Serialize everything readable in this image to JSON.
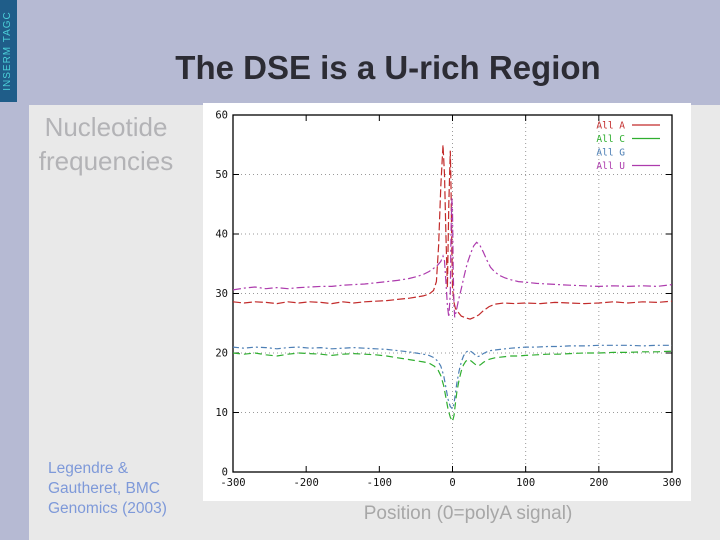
{
  "slide": {
    "sidebar_text": "INSERM TAGC",
    "title": "The DSE is a U-rich Region",
    "content_label": [
      "Nucleotide",
      "frequencies"
    ],
    "citation": [
      "Legendre &",
      "Gautheret, BMC",
      "Genomics (2003)"
    ],
    "xaxis_caption": "Position (0=polyA signal)"
  },
  "colors": {
    "background": "#b6bad3",
    "sidebar_bar": "#1f5d89",
    "sidebar_text": "#4ccfd9",
    "title_text": "#2c2c34",
    "content_box": "#e9e9e9",
    "muted_label": "#b3b3b6",
    "citation_text": "#7e99d9",
    "caption_text": "#a7a7a7",
    "grid": "#9a9a9a",
    "axis": "#000000"
  },
  "chart_data": {
    "type": "line",
    "title": "",
    "xlabel": "",
    "ylabel": "",
    "xlim": [
      -300,
      300
    ],
    "ylim": [
      0,
      60
    ],
    "xticks": [
      -300,
      -200,
      -100,
      0,
      100,
      200,
      300
    ],
    "yticks": [
      0,
      10,
      20,
      30,
      40,
      50,
      60
    ],
    "grid": {
      "h": [
        10,
        20,
        30,
        40,
        50
      ],
      "v": [
        0,
        100,
        200
      ]
    },
    "legend_position": "top-right-inside",
    "legend": [
      {
        "label": "All A",
        "color": "#c22b2b",
        "sample": true
      },
      {
        "label": "All C",
        "color": "#2fae2f",
        "sample": true
      },
      {
        "label": "All G",
        "color": "#4d7fb5",
        "sample": false
      },
      {
        "label": "All U",
        "color": "#ad3bad",
        "sample": true
      }
    ],
    "series": [
      {
        "name": "All A",
        "color": "#c22b2b",
        "dash": "8,3",
        "points": [
          [
            -300,
            28.6
          ],
          [
            -285,
            28.4
          ],
          [
            -270,
            28.6
          ],
          [
            -255,
            28.5
          ],
          [
            -240,
            28.3
          ],
          [
            -225,
            28.6
          ],
          [
            -210,
            28.4
          ],
          [
            -195,
            28.6
          ],
          [
            -180,
            28.5
          ],
          [
            -165,
            28.3
          ],
          [
            -150,
            28.6
          ],
          [
            -135,
            28.4
          ],
          [
            -120,
            28.6
          ],
          [
            -105,
            28.7
          ],
          [
            -90,
            28.8
          ],
          [
            -75,
            29.0
          ],
          [
            -60,
            29.2
          ],
          [
            -50,
            29.4
          ],
          [
            -40,
            29.6
          ],
          [
            -32,
            29.9
          ],
          [
            -26,
            30.5
          ],
          [
            -22,
            32
          ],
          [
            -19,
            38
          ],
          [
            -16,
            48
          ],
          [
            -13,
            55
          ],
          [
            -11,
            50
          ],
          [
            -9,
            40
          ],
          [
            -7,
            31
          ],
          [
            -5,
            45
          ],
          [
            -3,
            54
          ],
          [
            -2,
            48
          ],
          [
            -1,
            38
          ],
          [
            0,
            31
          ],
          [
            2,
            28.5
          ],
          [
            4,
            27.5
          ],
          [
            8,
            26.8
          ],
          [
            12,
            26.2
          ],
          [
            18,
            25.9
          ],
          [
            24,
            25.7
          ],
          [
            30,
            26.0
          ],
          [
            36,
            26.4
          ],
          [
            42,
            27.1
          ],
          [
            50,
            27.8
          ],
          [
            58,
            28.2
          ],
          [
            70,
            28.4
          ],
          [
            85,
            28.3
          ],
          [
            100,
            28.4
          ],
          [
            120,
            28.3
          ],
          [
            140,
            28.5
          ],
          [
            160,
            28.4
          ],
          [
            180,
            28.3
          ],
          [
            200,
            28.4
          ],
          [
            220,
            28.6
          ],
          [
            240,
            28.4
          ],
          [
            260,
            28.6
          ],
          [
            280,
            28.5
          ],
          [
            300,
            28.7
          ]
        ]
      },
      {
        "name": "All C",
        "color": "#2fae2f",
        "dash": "7,4",
        "points": [
          [
            -300,
            20.0
          ],
          [
            -285,
            19.8
          ],
          [
            -270,
            20.0
          ],
          [
            -255,
            19.7
          ],
          [
            -240,
            19.5
          ],
          [
            -225,
            19.8
          ],
          [
            -210,
            20.0
          ],
          [
            -195,
            19.9
          ],
          [
            -180,
            19.8
          ],
          [
            -165,
            19.6
          ],
          [
            -150,
            19.8
          ],
          [
            -135,
            19.9
          ],
          [
            -120,
            19.8
          ],
          [
            -105,
            19.7
          ],
          [
            -90,
            19.5
          ],
          [
            -75,
            19.2
          ],
          [
            -60,
            18.9
          ],
          [
            -50,
            18.7
          ],
          [
            -40,
            18.5
          ],
          [
            -32,
            18.3
          ],
          [
            -25,
            17.8
          ],
          [
            -20,
            17.2
          ],
          [
            -16,
            16.2
          ],
          [
            -12,
            14.5
          ],
          [
            -9,
            12.5
          ],
          [
            -6,
            10.5
          ],
          [
            -3,
            9.2
          ],
          [
            0,
            8.5
          ],
          [
            2,
            9.5
          ],
          [
            4,
            11.5
          ],
          [
            6,
            13.5
          ],
          [
            9,
            15.5
          ],
          [
            12,
            17.0
          ],
          [
            15,
            18.0
          ],
          [
            18,
            18.6
          ],
          [
            22,
            18.9
          ],
          [
            26,
            18.6
          ],
          [
            30,
            18.2
          ],
          [
            34,
            17.8
          ],
          [
            38,
            18.0
          ],
          [
            42,
            18.4
          ],
          [
            47,
            18.8
          ],
          [
            52,
            19.0
          ],
          [
            58,
            19.2
          ],
          [
            65,
            19.3
          ],
          [
            72,
            19.4
          ],
          [
            80,
            19.5
          ],
          [
            90,
            19.5
          ],
          [
            100,
            19.6
          ],
          [
            115,
            19.7
          ],
          [
            130,
            19.8
          ],
          [
            145,
            19.8
          ],
          [
            160,
            19.9
          ],
          [
            180,
            20.0
          ],
          [
            200,
            20.0
          ],
          [
            220,
            20.1
          ],
          [
            240,
            20.1
          ],
          [
            260,
            20.2
          ],
          [
            280,
            20.2
          ],
          [
            300,
            20.3
          ]
        ]
      },
      {
        "name": "All G",
        "color": "#4d7fb5",
        "dash": "6,3,2,3",
        "points": [
          [
            -300,
            21.0
          ],
          [
            -285,
            20.8
          ],
          [
            -270,
            21.0
          ],
          [
            -255,
            20.9
          ],
          [
            -240,
            20.7
          ],
          [
            -225,
            20.9
          ],
          [
            -210,
            21.0
          ],
          [
            -195,
            20.8
          ],
          [
            -180,
            20.9
          ],
          [
            -165,
            20.7
          ],
          [
            -150,
            20.8
          ],
          [
            -135,
            20.9
          ],
          [
            -120,
            20.8
          ],
          [
            -105,
            20.7
          ],
          [
            -90,
            20.6
          ],
          [
            -75,
            20.4
          ],
          [
            -60,
            20.2
          ],
          [
            -50,
            20.0
          ],
          [
            -40,
            19.8
          ],
          [
            -32,
            19.6
          ],
          [
            -25,
            19.2
          ],
          [
            -20,
            18.6
          ],
          [
            -16,
            17.8
          ],
          [
            -12,
            16.2
          ],
          [
            -9,
            14.2
          ],
          [
            -6,
            12.2
          ],
          [
            -3,
            11.0
          ],
          [
            0,
            10.6
          ],
          [
            2,
            11.5
          ],
          [
            4,
            13.2
          ],
          [
            6,
            15.0
          ],
          [
            9,
            17.0
          ],
          [
            12,
            18.5
          ],
          [
            15,
            19.5
          ],
          [
            18,
            20.1
          ],
          [
            22,
            20.4
          ],
          [
            26,
            20.2
          ],
          [
            30,
            19.8
          ],
          [
            34,
            19.4
          ],
          [
            38,
            19.5
          ],
          [
            42,
            19.9
          ],
          [
            47,
            20.2
          ],
          [
            52,
            20.4
          ],
          [
            58,
            20.5
          ],
          [
            65,
            20.6
          ],
          [
            72,
            20.7
          ],
          [
            80,
            20.8
          ],
          [
            90,
            20.9
          ],
          [
            100,
            21.0
          ],
          [
            115,
            21.0
          ],
          [
            130,
            21.1
          ],
          [
            145,
            21.1
          ],
          [
            160,
            21.2
          ],
          [
            180,
            21.2
          ],
          [
            200,
            21.3
          ],
          [
            220,
            21.3
          ],
          [
            240,
            21.3
          ],
          [
            260,
            21.2
          ],
          [
            280,
            21.3
          ],
          [
            300,
            21.3
          ]
        ]
      },
      {
        "name": "All U",
        "color": "#ad3bad",
        "dash": "8,3,2,3",
        "points": [
          [
            -300,
            30.6
          ],
          [
            -285,
            30.9
          ],
          [
            -270,
            31.1
          ],
          [
            -255,
            30.8
          ],
          [
            -240,
            31.0
          ],
          [
            -225,
            30.8
          ],
          [
            -210,
            31.0
          ],
          [
            -195,
            31.1
          ],
          [
            -180,
            31.2
          ],
          [
            -165,
            31.2
          ],
          [
            -150,
            31.4
          ],
          [
            -135,
            31.5
          ],
          [
            -120,
            31.6
          ],
          [
            -105,
            31.8
          ],
          [
            -90,
            32.0
          ],
          [
            -75,
            32.2
          ],
          [
            -60,
            32.5
          ],
          [
            -50,
            32.8
          ],
          [
            -40,
            33.2
          ],
          [
            -32,
            33.7
          ],
          [
            -25,
            34.3
          ],
          [
            -20,
            34.8
          ],
          [
            -16,
            35.4
          ],
          [
            -13,
            36.3
          ],
          [
            -11,
            35.5
          ],
          [
            -9,
            32
          ],
          [
            -7,
            28
          ],
          [
            -5,
            26
          ],
          [
            -3,
            30
          ],
          [
            -2,
            40
          ],
          [
            -1,
            46
          ],
          [
            0,
            44
          ],
          [
            1,
            34
          ],
          [
            2,
            28
          ],
          [
            3,
            26
          ],
          [
            5,
            27
          ],
          [
            8,
            28.8
          ],
          [
            12,
            30.8
          ],
          [
            16,
            33
          ],
          [
            20,
            35
          ],
          [
            25,
            36.8
          ],
          [
            29,
            38
          ],
          [
            33,
            38.6
          ],
          [
            37,
            38.2
          ],
          [
            42,
            37
          ],
          [
            47,
            35.6
          ],
          [
            52,
            34.4
          ],
          [
            58,
            33.6
          ],
          [
            65,
            33
          ],
          [
            72,
            32.6
          ],
          [
            80,
            32.3
          ],
          [
            90,
            32.0
          ],
          [
            100,
            31.9
          ],
          [
            115,
            31.7
          ],
          [
            130,
            31.6
          ],
          [
            145,
            31.5
          ],
          [
            160,
            31.4
          ],
          [
            180,
            31.3
          ],
          [
            200,
            31.2
          ],
          [
            220,
            31.3
          ],
          [
            240,
            31.2
          ],
          [
            260,
            31.3
          ],
          [
            280,
            31.2
          ],
          [
            300,
            31.5
          ]
        ]
      }
    ]
  }
}
